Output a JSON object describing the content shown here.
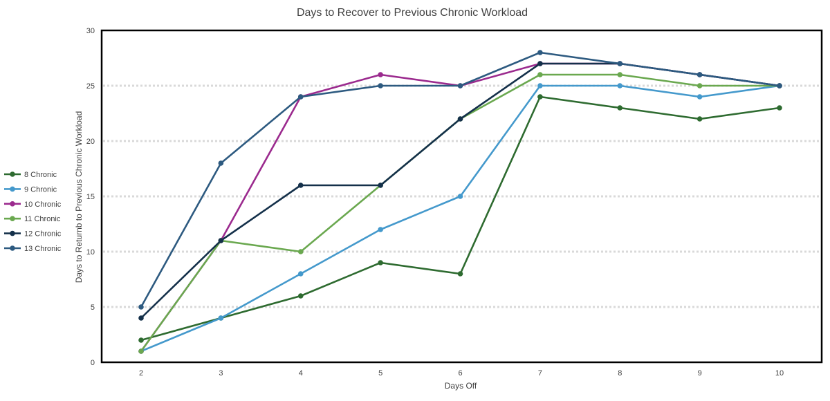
{
  "chart_data": {
    "type": "line",
    "title": "Days to Recover to Previous Chronic Workload",
    "xlabel": "Days Off",
    "ylabel": "Days to Returnb to Previous Chronic Workload",
    "x": [
      2,
      3,
      4,
      5,
      6,
      7,
      8,
      9,
      10
    ],
    "ylim": [
      0,
      30
    ],
    "yticks": [
      0,
      5,
      10,
      15,
      20,
      25,
      30
    ],
    "grid": "horizontal-dotted",
    "legend_position": "left",
    "series": [
      {
        "name": "8 Chronic",
        "color": "#2e6b30",
        "values": [
          2,
          4,
          6,
          9,
          8,
          24,
          23,
          22,
          23
        ]
      },
      {
        "name": "9 Chronic",
        "color": "#4499cc",
        "values": [
          1,
          4,
          8,
          12,
          15,
          25,
          25,
          24,
          25
        ]
      },
      {
        "name": "10 Chronic",
        "color": "#9b2a8e",
        "values": [
          1,
          11,
          24,
          26,
          25,
          27,
          27,
          26,
          25
        ]
      },
      {
        "name": "11 Chronic",
        "color": "#6aa84f",
        "values": [
          1,
          11,
          10,
          16,
          22,
          26,
          26,
          25,
          25
        ]
      },
      {
        "name": "12 Chronic",
        "color": "#14304a",
        "values": [
          4,
          11,
          16,
          16,
          22,
          27,
          27,
          26,
          25
        ]
      },
      {
        "name": "13 Chronic",
        "color": "#2d5a80",
        "values": [
          5,
          18,
          24,
          25,
          25,
          28,
          27,
          26,
          25
        ]
      }
    ]
  }
}
